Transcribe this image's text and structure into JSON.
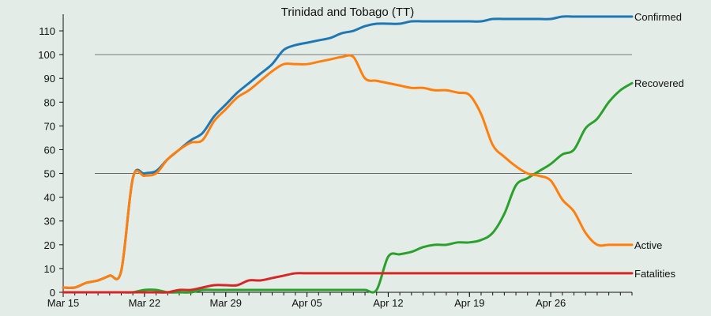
{
  "chart_data": {
    "type": "line",
    "title": "Trinidad and Tobago (TT)",
    "xlabel": "",
    "ylabel": "",
    "x_start": "2020-03-15",
    "x_end": "2020-05-03",
    "x_tick_labels": [
      "Mar 15",
      "Mar 22",
      "Mar 29",
      "Apr 05",
      "Apr 12",
      "Apr 19",
      "Apr 26"
    ],
    "ylim": [
      0,
      117
    ],
    "y_ticks": [
      0,
      10,
      20,
      30,
      40,
      50,
      60,
      70,
      80,
      90,
      100,
      110
    ],
    "gridlines_y": [
      50,
      100
    ],
    "legend": "line-end labels, right",
    "x": [
      "2020-03-15",
      "2020-03-16",
      "2020-03-17",
      "2020-03-18",
      "2020-03-19",
      "2020-03-20",
      "2020-03-21",
      "2020-03-22",
      "2020-03-23",
      "2020-03-24",
      "2020-03-25",
      "2020-03-26",
      "2020-03-27",
      "2020-03-28",
      "2020-03-29",
      "2020-03-30",
      "2020-03-31",
      "2020-04-01",
      "2020-04-02",
      "2020-04-03",
      "2020-04-04",
      "2020-04-05",
      "2020-04-06",
      "2020-04-07",
      "2020-04-08",
      "2020-04-09",
      "2020-04-10",
      "2020-04-11",
      "2020-04-12",
      "2020-04-13",
      "2020-04-14",
      "2020-04-15",
      "2020-04-16",
      "2020-04-17",
      "2020-04-18",
      "2020-04-19",
      "2020-04-20",
      "2020-04-21",
      "2020-04-22",
      "2020-04-23",
      "2020-04-24",
      "2020-04-25",
      "2020-04-26",
      "2020-04-27",
      "2020-04-28",
      "2020-04-29",
      "2020-04-30",
      "2020-05-01",
      "2020-05-02",
      "2020-05-03"
    ],
    "series": [
      {
        "name": "Confirmed",
        "color": "#1f77b4",
        "values": [
          2,
          2,
          4,
          5,
          7,
          9,
          48,
          50,
          51,
          56,
          60,
          64,
          67,
          74,
          79,
          84,
          88,
          92,
          96,
          102,
          104,
          105,
          106,
          107,
          109,
          110,
          112,
          113,
          113,
          113,
          114,
          114,
          114,
          114,
          114,
          114,
          114,
          115,
          115,
          115,
          115,
          115,
          115,
          116,
          116,
          116,
          116,
          116,
          116,
          116
        ]
      },
      {
        "name": "Recovered",
        "color": "#2ca02c",
        "values": [
          0,
          0,
          0,
          0,
          0,
          0,
          0,
          1,
          1,
          0,
          0,
          0,
          1,
          1,
          1,
          1,
          1,
          1,
          1,
          1,
          1,
          1,
          1,
          1,
          1,
          1,
          1,
          1,
          15,
          16,
          17,
          19,
          20,
          20,
          21,
          21,
          22,
          25,
          33,
          45,
          48,
          51,
          54,
          58,
          60,
          69,
          73,
          80,
          85,
          88
        ]
      },
      {
        "name": "Active",
        "color": "#ff7f0e",
        "values": [
          2,
          2,
          4,
          5,
          7,
          9,
          48,
          49,
          50,
          56,
          60,
          63,
          64,
          72,
          77,
          82,
          85,
          89,
          93,
          96,
          96,
          96,
          97,
          98,
          99,
          99,
          90,
          89,
          88,
          87,
          86,
          86,
          85,
          85,
          84,
          83,
          75,
          62,
          57,
          53,
          50,
          49,
          47,
          39,
          34,
          25,
          20,
          20,
          20,
          20
        ]
      },
      {
        "name": "Fatalities",
        "color": "#d62728",
        "values": [
          0,
          0,
          0,
          0,
          0,
          0,
          0,
          0,
          0,
          0,
          1,
          1,
          2,
          3,
          3,
          3,
          5,
          5,
          6,
          7,
          8,
          8,
          8,
          8,
          8,
          8,
          8,
          8,
          8,
          8,
          8,
          8,
          8,
          8,
          8,
          8,
          8,
          8,
          8,
          8,
          8,
          8,
          8,
          8,
          8,
          8,
          8,
          8,
          8,
          8
        ]
      }
    ]
  }
}
